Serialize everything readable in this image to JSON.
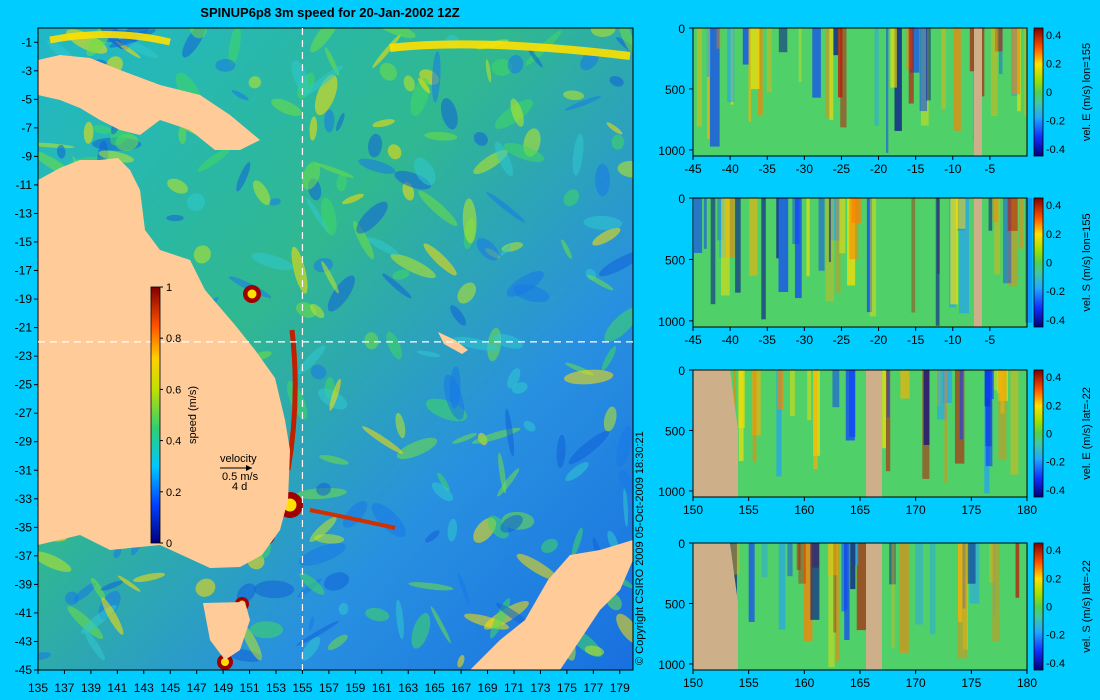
{
  "chart_data": [
    {
      "type": "heatmap",
      "name": "map",
      "title": "SPINUP6p8 3m speed for 20-Jan-2002 12Z",
      "x_ticks": [
        135,
        137,
        139,
        141,
        143,
        145,
        147,
        149,
        151,
        153,
        155,
        157,
        159,
        161,
        163,
        165,
        167,
        169,
        171,
        173,
        175,
        177,
        179
      ],
      "y_ticks": [
        -1,
        -3,
        -5,
        -7,
        -9,
        -11,
        -13,
        -15,
        -17,
        -19,
        -21,
        -23,
        -25,
        -27,
        -29,
        -31,
        -33,
        -35,
        -37,
        -39,
        -41,
        -43,
        -45
      ],
      "xlim": [
        135,
        180
      ],
      "ylim": [
        -45,
        0
      ],
      "colorbar": {
        "label": "speed (m/s)",
        "ticks": [
          "0",
          "0.2",
          "0.4",
          "0.6",
          "0.8",
          "1"
        ],
        "range": [
          0,
          1
        ]
      },
      "velocity_legend": {
        "title": "velocity",
        "speed": "0.5 m/s",
        "interval": "4 d"
      },
      "section_lines": {
        "lon": 155,
        "lat": -22
      }
    },
    {
      "type": "heatmap",
      "name": "velE_lon155",
      "colorbar_label": "vel. E (m/s) lon=155",
      "x_ticks": [
        "-45",
        "-40",
        "-35",
        "-30",
        "-25",
        "-20",
        "-15",
        "-10",
        "-5"
      ],
      "y_ticks": [
        "0",
        "500",
        "1000"
      ],
      "cb_ticks": [
        "0.4",
        "0.2",
        "0",
        "-0.2",
        "-0.4"
      ]
    },
    {
      "type": "heatmap",
      "name": "velS_lon155",
      "colorbar_label": "vel. S (m/s) lon=155",
      "x_ticks": [
        "-45",
        "-40",
        "-35",
        "-30",
        "-25",
        "-20",
        "-15",
        "-10",
        "-5"
      ],
      "y_ticks": [
        "0",
        "500",
        "1000"
      ],
      "cb_ticks": [
        "0.4",
        "0.2",
        "0",
        "-0.2",
        "-0.4"
      ]
    },
    {
      "type": "heatmap",
      "name": "velE_lat22",
      "colorbar_label": "vel. E (m/s) lat=-22",
      "x_ticks": [
        "150",
        "155",
        "160",
        "165",
        "170",
        "175",
        "180"
      ],
      "y_ticks": [
        "0",
        "500",
        "1000"
      ],
      "cb_ticks": [
        "0.4",
        "0.2",
        "0",
        "-0.2",
        "-0.4"
      ]
    },
    {
      "type": "heatmap",
      "name": "velS_lat22",
      "colorbar_label": "vel. S (m/s) lat=-22",
      "x_ticks": [
        "150",
        "155",
        "160",
        "165",
        "170",
        "175",
        "180"
      ],
      "y_ticks": [
        "0",
        "500",
        "1000"
      ],
      "cb_ticks": [
        "0.4",
        "0.2",
        "0",
        "-0.2",
        "-0.4"
      ]
    }
  ],
  "copyright": "© Copyright CSIRO 2009   05-Oct-2009 18:30:21",
  "colors": {
    "background": "#00ccff",
    "land": "#ffcc99",
    "section_land": "#cdb08a",
    "ocean_base": "#2fa8e8"
  }
}
